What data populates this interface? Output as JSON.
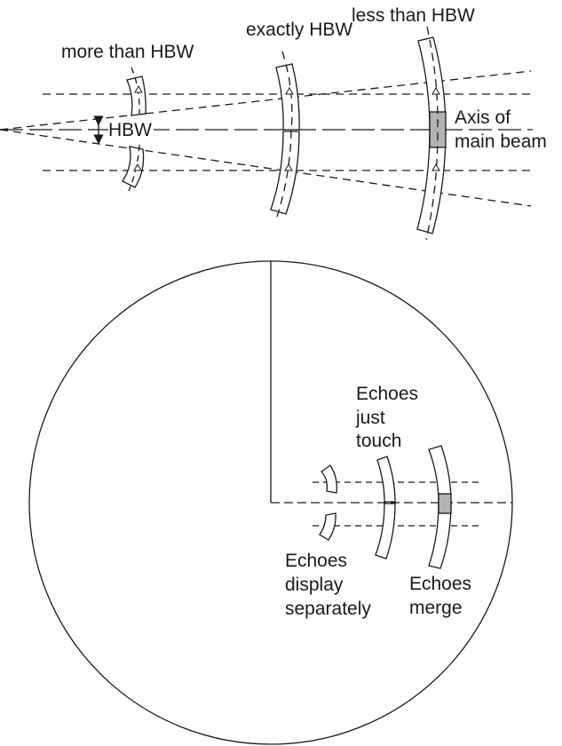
{
  "labels": {
    "more_than_hbw": "more than HBW",
    "exactly_hbw": "exactly HBW",
    "less_than_hbw": "less than HBW",
    "hbw": "HBW",
    "axis_line1": "Axis of",
    "axis_line2": "main beam",
    "touch_line1": "Echoes",
    "touch_line2": "just",
    "touch_line3": "touch",
    "separate_line1": "Echoes",
    "separate_line2": "display",
    "separate_line3": "separately",
    "merge_line1": "Echoes",
    "merge_line2": "merge"
  },
  "colors": {
    "line": "#1a1a1a",
    "merged_fill": "#b3b3b3",
    "background": "#ffffff"
  }
}
